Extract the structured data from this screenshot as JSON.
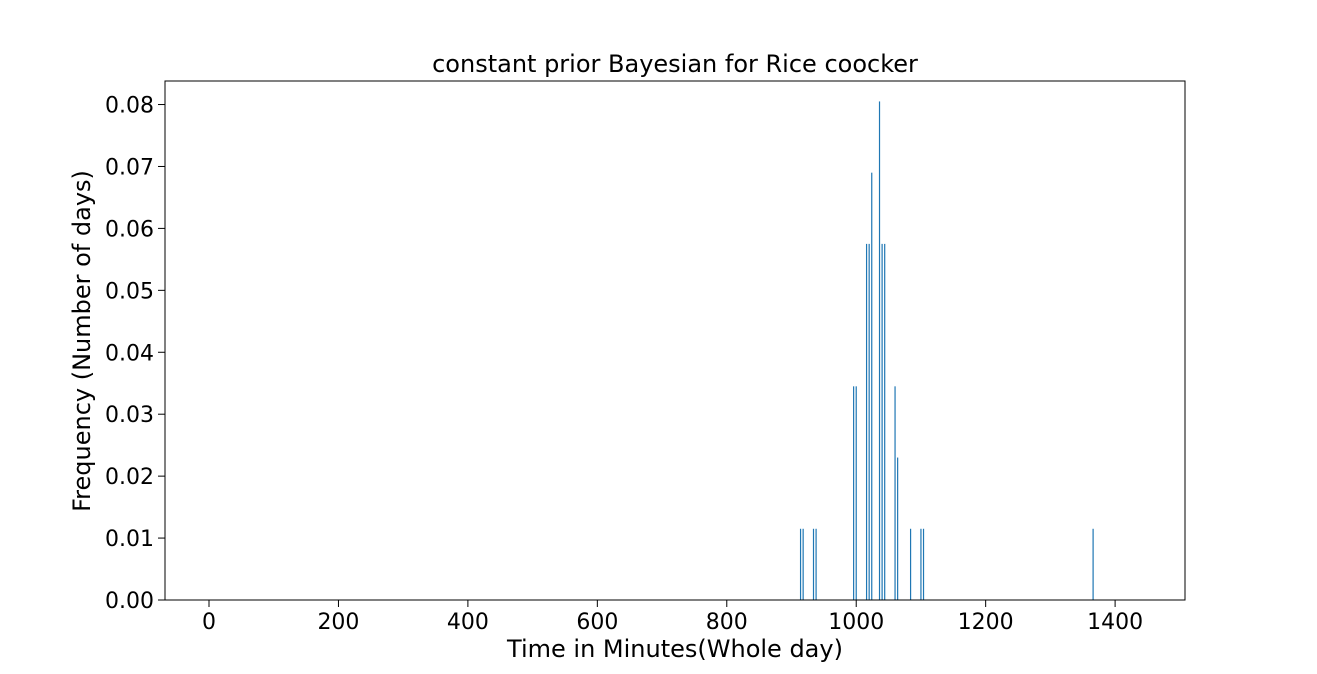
{
  "chart_data": {
    "type": "bar",
    "title": "constant prior Bayesian for Rice coocker",
    "xlabel": "Time in Minutes(Whole day)",
    "ylabel": "Frequency (Number of days)",
    "xlim": [
      -68,
      1508
    ],
    "ylim": [
      0,
      0.0838
    ],
    "xticks": [
      0,
      200,
      400,
      600,
      800,
      1000,
      1200,
      1400
    ],
    "yticks": [
      0.0,
      0.01,
      0.02,
      0.03,
      0.04,
      0.05,
      0.06,
      0.07,
      0.08
    ],
    "grid": false,
    "bar_color": "#1f77b4",
    "series": [
      {
        "x": [
          914,
          918,
          934,
          938,
          996,
          1000,
          1016,
          1020,
          1024,
          1036,
          1040,
          1044,
          1060,
          1064,
          1084,
          1100,
          1104,
          1366
        ],
        "values": [
          0.0115,
          0.0115,
          0.0115,
          0.0115,
          0.0345,
          0.0345,
          0.0575,
          0.0575,
          0.069,
          0.0805,
          0.0575,
          0.0575,
          0.0345,
          0.023,
          0.0115,
          0.0115,
          0.0115,
          0.0115
        ]
      }
    ]
  }
}
